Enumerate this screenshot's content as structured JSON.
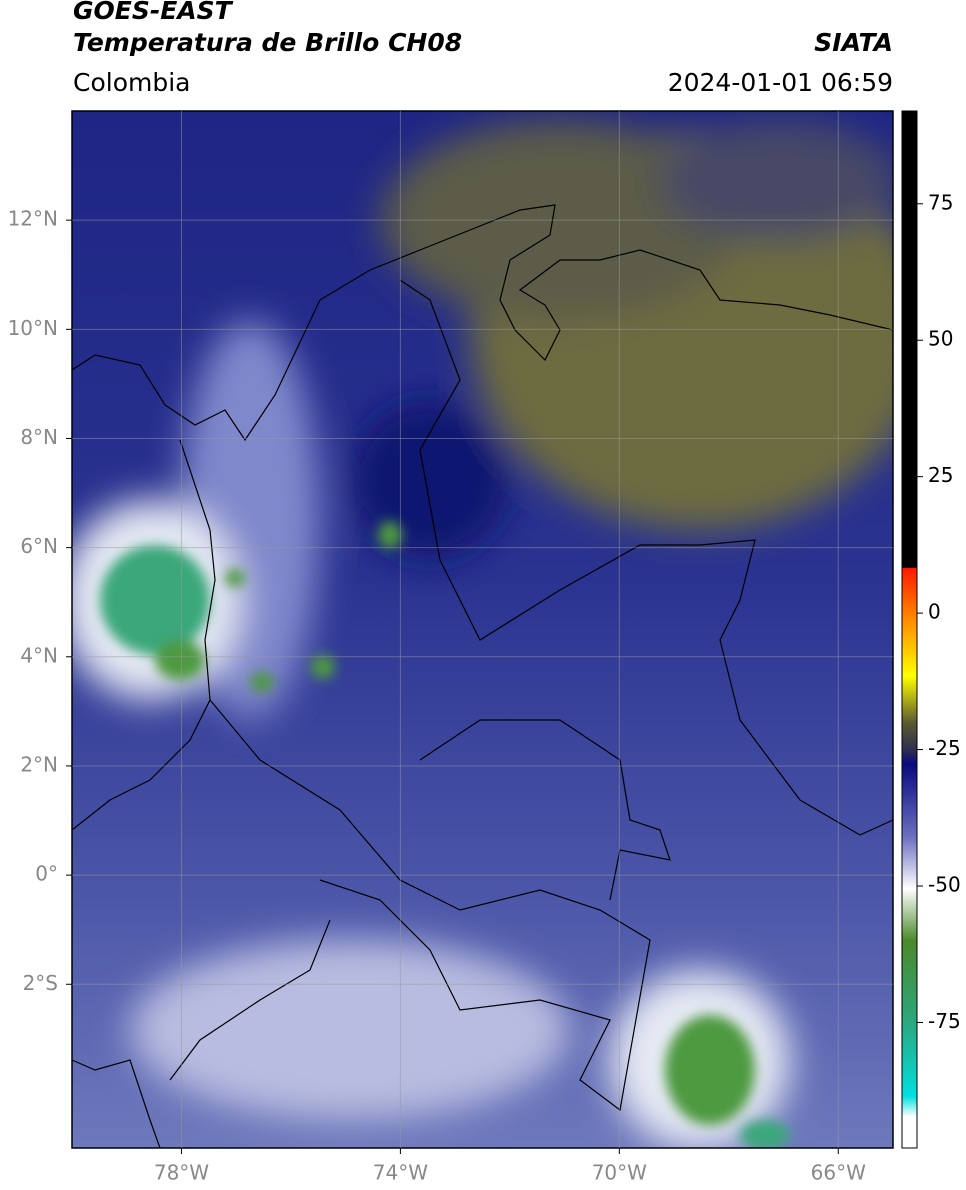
{
  "header": {
    "source": "GOES-EAST",
    "product": "Temperatura de Brillo CH08",
    "agency": "SIATA",
    "region": "Colombia",
    "datetime": "2024-01-01 06:59"
  },
  "map": {
    "xlim": [
      -80,
      -65
    ],
    "ylim": [
      -5,
      14
    ],
    "xticks": [
      {
        "value": -78,
        "label": "78°W"
      },
      {
        "value": -74,
        "label": "74°W"
      },
      {
        "value": -70,
        "label": "70°W"
      },
      {
        "value": -66,
        "label": "66°W"
      }
    ],
    "yticks": [
      {
        "value": 12,
        "label": "12°N"
      },
      {
        "value": 10,
        "label": "10°N"
      },
      {
        "value": 8,
        "label": "8°N"
      },
      {
        "value": 6,
        "label": "6°N"
      },
      {
        "value": 4,
        "label": "4°N"
      },
      {
        "value": 2,
        "label": "2°N"
      },
      {
        "value": 0,
        "label": "0°"
      },
      {
        "value": -2,
        "label": "2°S"
      }
    ]
  },
  "colorbar": {
    "lim": [
      -98,
      92
    ],
    "ticks": [
      75,
      50,
      25,
      0,
      -25,
      -50,
      -75
    ]
  }
}
